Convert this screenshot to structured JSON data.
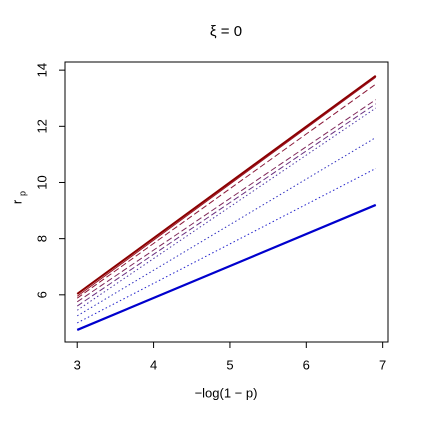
{
  "chart_data": {
    "type": "line",
    "title": "ξ = 0",
    "x_label": "−log(1 − p)",
    "y_label": "r",
    "y_label_subscript": "p",
    "x": [
      3,
      6.91
    ],
    "series": [
      {
        "color": "#8b0000",
        "dash": "solid",
        "width": 2,
        "values": [
          6.03,
          13.8
        ]
      },
      {
        "color": "#9a1020",
        "dash": "solid",
        "width": 1,
        "values": [
          5.95,
          13.75
        ]
      },
      {
        "color": "#8b1a3a",
        "dash": "dashed",
        "width": 1,
        "values": [
          5.88,
          13.5
        ]
      },
      {
        "color": "#80285a",
        "dash": "dashed",
        "width": 1,
        "values": [
          5.75,
          12.95
        ]
      },
      {
        "color": "#6a3080",
        "dash": "dashed",
        "width": 1,
        "values": [
          5.6,
          12.8
        ]
      },
      {
        "color": "#4a35a8",
        "dash": "dotted",
        "width": 1,
        "values": [
          5.45,
          12.65
        ]
      },
      {
        "color": "#3030c0",
        "dash": "dotted",
        "width": 1,
        "values": [
          5.25,
          11.6
        ]
      },
      {
        "color": "#2020cc",
        "dash": "dotted",
        "width": 1,
        "values": [
          5.0,
          10.5
        ]
      },
      {
        "color": "#0000cd",
        "dash": "solid",
        "width": 2.2,
        "values": [
          4.75,
          9.2
        ]
      }
    ],
    "xlim": [
      2.84,
      7.07
    ],
    "ylim": [
      4.32,
      14.29
    ],
    "xticks": [
      3,
      4,
      5,
      6,
      7
    ],
    "yticks": [
      6,
      8,
      10,
      12,
      14
    ],
    "grid": false
  }
}
